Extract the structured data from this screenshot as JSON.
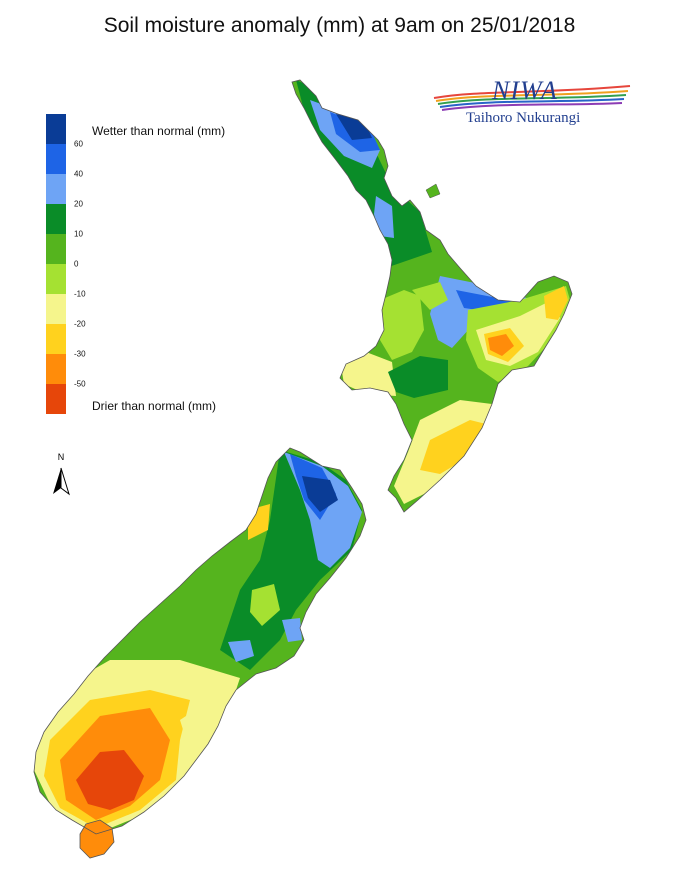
{
  "title": "Soil moisture anomaly (mm) at 9am on 25/01/2018",
  "legend": {
    "wetter_label": "Wetter than normal (mm)",
    "drier_label": "Drier than normal (mm)",
    "classes": [
      {
        "color": "#0a3c96"
      },
      {
        "color": "#1e64e6"
      },
      {
        "color": "#6ea4f5"
      },
      {
        "color": "#0a8c28"
      },
      {
        "color": "#55b41e"
      },
      {
        "color": "#a5e132"
      },
      {
        "color": "#f5f58c"
      },
      {
        "color": "#ffd21e"
      },
      {
        "color": "#ff8c0a"
      },
      {
        "color": "#e6460a"
      }
    ],
    "ticks": [
      "60",
      "40",
      "20",
      "10",
      "0",
      "-10",
      "-20",
      "-30",
      "-50"
    ]
  },
  "logo": {
    "name": "NIWA",
    "subtitle": "Taihoro Nukurangi"
  },
  "north_arrow": {
    "label": "N"
  },
  "colors": {
    "very_wet": "#0a3c96",
    "wet": "#1e64e6",
    "moderately_wet": "#6ea4f5",
    "slightly_wet": "#0a8c28",
    "near_normal_wet": "#55b41e",
    "near_normal_dry": "#a5e132",
    "slightly_dry": "#f5f58c",
    "dry": "#ffd21e",
    "very_dry": "#ff8c0a",
    "extremely_dry": "#e6460a",
    "logo_blue": "#223f8f"
  }
}
